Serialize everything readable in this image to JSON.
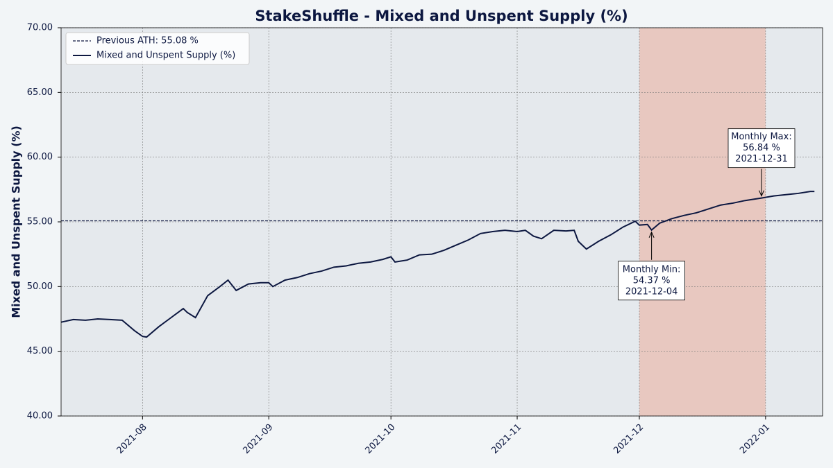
{
  "chart_data": {
    "type": "line",
    "title": "StakeShuffle - Mixed and Unspent Supply (%)",
    "y_label": "Mixed and Unspent Supply (%)",
    "x": [
      "2021-07-12",
      "2021-07-15",
      "2021-07-18",
      "2021-07-21",
      "2021-07-24",
      "2021-07-27",
      "2021-07-30",
      "2021-08-01",
      "2021-08-02",
      "2021-08-05",
      "2021-08-08",
      "2021-08-11",
      "2021-08-12",
      "2021-08-14",
      "2021-08-17",
      "2021-08-20",
      "2021-08-22",
      "2021-08-24",
      "2021-08-27",
      "2021-08-30",
      "2021-09-01",
      "2021-09-02",
      "2021-09-05",
      "2021-09-08",
      "2021-09-11",
      "2021-09-14",
      "2021-09-17",
      "2021-09-20",
      "2021-09-23",
      "2021-09-26",
      "2021-09-29",
      "2021-10-01",
      "2021-10-02",
      "2021-10-05",
      "2021-10-08",
      "2021-10-11",
      "2021-10-14",
      "2021-10-17",
      "2021-10-20",
      "2021-10-23",
      "2021-10-26",
      "2021-10-29",
      "2021-11-01",
      "2021-11-03",
      "2021-11-05",
      "2021-11-07",
      "2021-11-10",
      "2021-11-13",
      "2021-11-15",
      "2021-11-16",
      "2021-11-18",
      "2021-11-21",
      "2021-11-24",
      "2021-11-27",
      "2021-11-30",
      "2021-12-01",
      "2021-12-03",
      "2021-12-04",
      "2021-12-06",
      "2021-12-09",
      "2021-12-12",
      "2021-12-15",
      "2021-12-18",
      "2021-12-21",
      "2021-12-24",
      "2021-12-27",
      "2021-12-31",
      "2022-01-03",
      "2022-01-06",
      "2022-01-09",
      "2022-01-12",
      "2022-01-13"
    ],
    "series": [
      {
        "name": "Mixed and Unspent Supply (%)",
        "color": "#0c1740",
        "values": [
          47.25,
          47.45,
          47.4,
          47.5,
          47.45,
          47.4,
          46.6,
          46.15,
          46.1,
          46.9,
          47.6,
          48.3,
          48.0,
          47.6,
          49.3,
          50.0,
          50.5,
          49.7,
          50.2,
          50.3,
          50.3,
          50.0,
          50.5,
          50.7,
          51.0,
          51.2,
          51.5,
          51.6,
          51.8,
          51.9,
          52.1,
          52.3,
          51.9,
          52.05,
          52.45,
          52.5,
          52.8,
          53.2,
          53.6,
          54.1,
          54.25,
          54.35,
          54.25,
          54.35,
          53.9,
          53.7,
          54.35,
          54.3,
          54.35,
          53.5,
          52.9,
          53.5,
          54.0,
          54.6,
          55.05,
          54.75,
          54.8,
          54.37,
          54.9,
          55.25,
          55.5,
          55.7,
          56.0,
          56.3,
          56.45,
          56.65,
          56.84,
          57.0,
          57.1,
          57.2,
          57.35,
          57.35
        ]
      }
    ],
    "reference_line": {
      "name": "Previous ATH: 55.08 %",
      "value": 55.08,
      "color": "#0c1740"
    },
    "highlight_span": {
      "start": "2021-12-01",
      "end": "2022-01-01",
      "color": "#e8c8c0"
    },
    "annotations": [
      {
        "lines": [
          "Monthly Max:",
          "56.84 %",
          "2021-12-31"
        ],
        "x": "2021-12-31",
        "y": 56.84,
        "side": "above"
      },
      {
        "lines": [
          "Monthly Min:",
          "54.37 %",
          "2021-12-04"
        ],
        "x": "2021-12-04",
        "y": 54.37,
        "side": "below"
      }
    ],
    "xlim": [
      "2021-07-12",
      "2022-01-15"
    ],
    "xticks": [
      {
        "value": "2021-08-01",
        "label": "2021-08"
      },
      {
        "value": "2021-09-01",
        "label": "2021-09"
      },
      {
        "value": "2021-10-01",
        "label": "2021-10"
      },
      {
        "value": "2021-11-01",
        "label": "2021-11"
      },
      {
        "value": "2021-12-01",
        "label": "2021-12"
      },
      {
        "value": "2022-01-01",
        "label": "2022-01"
      }
    ],
    "ylim": [
      40,
      70
    ],
    "yticks": [
      {
        "value": 40,
        "label": "40.00"
      },
      {
        "value": 45,
        "label": "45.00"
      },
      {
        "value": 50,
        "label": "50.00"
      },
      {
        "value": 55,
        "label": "55.00"
      },
      {
        "value": 60,
        "label": "60.00"
      },
      {
        "value": 65,
        "label": "65.00"
      },
      {
        "value": 70,
        "label": "70.00"
      }
    ],
    "grid": true,
    "legend": "upper-left"
  }
}
